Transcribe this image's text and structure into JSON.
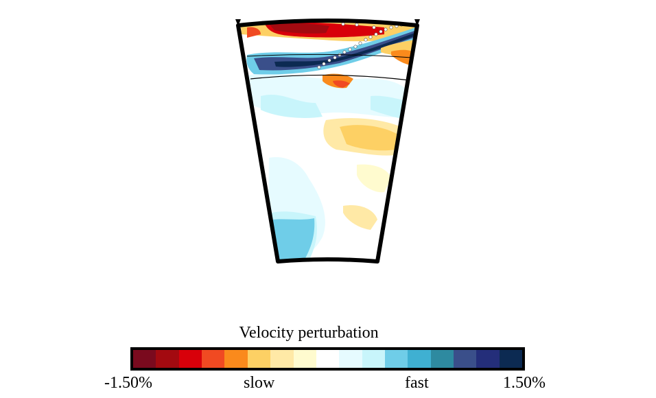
{
  "colorbar": {
    "title": "Velocity perturbation",
    "min_label": "-1.50%",
    "max_label": "1.50%",
    "slow_label": "slow",
    "fast_label": "fast",
    "colors": [
      "#7a0a1e",
      "#a30a10",
      "#d8000a",
      "#f04a22",
      "#fa8a1c",
      "#fdd064",
      "#ffe9a6",
      "#fffbcf",
      "#ffffff",
      "#e6fbff",
      "#c8f5fb",
      "#6fcde8",
      "#3fb0d2",
      "#2e8aa0",
      "#3a4f8a",
      "#242e7a",
      "#0c2a52"
    ]
  },
  "section": {
    "features": [
      "dipping-slab-anomaly",
      "earthquake-hypocenters",
      "discontinuity-410",
      "discontinuity-660",
      "surface-station-markers"
    ]
  }
}
